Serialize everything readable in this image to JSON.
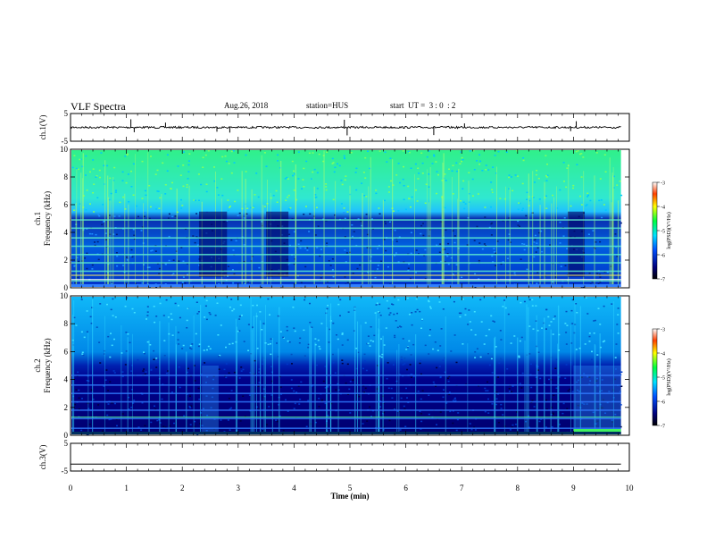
{
  "header": {
    "title": "VLF Spectra",
    "date": "Aug.26, 2018",
    "station": "station=HUS",
    "start": "start  UT =  3 : 0  : 2"
  },
  "colors": {
    "spectrogram_low": "#00006e",
    "spectrogram_mid": "#00ffcc",
    "spectrogram_high": "#ff0000"
  },
  "chart_data": [
    {
      "type": "line",
      "name": "ch1-waveform",
      "ylabel": "ch.1(V)",
      "ylim": [
        -5,
        5
      ],
      "yticks": [
        "5",
        "-5"
      ],
      "xlim": [
        0,
        10
      ],
      "baseline": 0,
      "spike_times_min": [
        1.08,
        1.14,
        1.7,
        2.62,
        2.85,
        4.9,
        4.95,
        6.5,
        7.05,
        8.95,
        9.05
      ]
    },
    {
      "type": "heatmap",
      "name": "ch1-spectrogram",
      "ylabel": "ch.1 Frequency (kHz)",
      "ylim": [
        0,
        10
      ],
      "yticks": [
        "0",
        "2",
        "4",
        "6",
        "8",
        "10"
      ],
      "xlim": [
        0,
        10
      ],
      "colorbar": {
        "label": "log(PSD)(V²/Hz)",
        "ticks": [
          "-3",
          "-4",
          "-5",
          "-6",
          "-7"
        ],
        "range": [
          -7,
          -3
        ]
      },
      "band_edge_khz": 5.5,
      "harmonic_lines_khz": [
        0.5,
        1.2,
        1.8,
        2.4,
        3.0,
        3.6,
        4.3,
        4.9
      ],
      "quiet_intervals_min": [
        [
          2.3,
          2.8
        ],
        [
          3.5,
          3.9
        ],
        [
          8.9,
          9.2
        ]
      ]
    },
    {
      "type": "heatmap",
      "name": "ch2-spectrogram",
      "ylabel": "ch.2 Frequency (kHz)",
      "ylim": [
        0,
        10
      ],
      "yticks": [
        "0",
        "2",
        "4",
        "6",
        "8",
        "10"
      ],
      "xlim": [
        0,
        10
      ],
      "colorbar": {
        "label": "log(PSD)(V²/Hz)",
        "ticks": [
          "-3",
          "-4",
          "-5",
          "-6",
          "-7"
        ],
        "range": [
          -7,
          -3
        ]
      },
      "band_edge_khz": 5.5,
      "harmonic_lines_khz": [
        0.5,
        1.2,
        1.8,
        2.4,
        3.0,
        3.6,
        4.3
      ],
      "bright_intervals_min": [
        [
          2.35,
          2.65
        ],
        [
          9.0,
          9.85
        ]
      ]
    },
    {
      "type": "line",
      "name": "ch3-waveform",
      "ylabel": "ch.3(V)",
      "ylim": [
        -5,
        5
      ],
      "yticks": [
        "5",
        "-5"
      ],
      "xlim": [
        0,
        10
      ],
      "baseline": -2.5
    }
  ],
  "xaxis": {
    "label": "Time (min)",
    "ticks": [
      "0",
      "1",
      "2",
      "3",
      "4",
      "5",
      "6",
      "7",
      "8",
      "9",
      "10"
    ]
  }
}
